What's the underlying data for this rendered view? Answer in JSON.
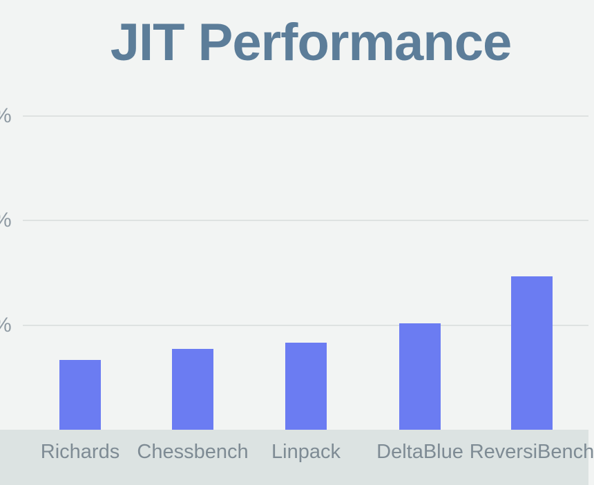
{
  "slide": {
    "title": "JIT Performance"
  },
  "chart_data": {
    "type": "bar",
    "title": "JIT Performance",
    "categories": [
      "Richards",
      "Chessbench",
      "Linpack",
      "DeltaBlue",
      "ReversiBench"
    ],
    "values": [
      0.67,
      0.77,
      0.83,
      1.02,
      1.47
    ],
    "value_scale_note": "y-axis numerals are clipped off the left edge of the screenshot; only '%' signs are visible. Values are expressed in gridline units (1.0 = lowest visible gridline).",
    "ytick_labels": [
      "%",
      "%",
      "%"
    ],
    "ytick_values_units": [
      1,
      2,
      3
    ],
    "xlabel": "",
    "ylabel": "",
    "ylim_units": [
      0,
      3.38
    ],
    "grid": true,
    "legend": false
  },
  "colors": {
    "background": "#f2f4f3",
    "bar_fill": "#6b7cf2",
    "axis_strip": "#dce3e2",
    "gridline": "#dee2e1",
    "title_text": "#5c7d99",
    "xaxis_label_text": "#7e8b94",
    "ytick_text": "#8f9aa3"
  }
}
